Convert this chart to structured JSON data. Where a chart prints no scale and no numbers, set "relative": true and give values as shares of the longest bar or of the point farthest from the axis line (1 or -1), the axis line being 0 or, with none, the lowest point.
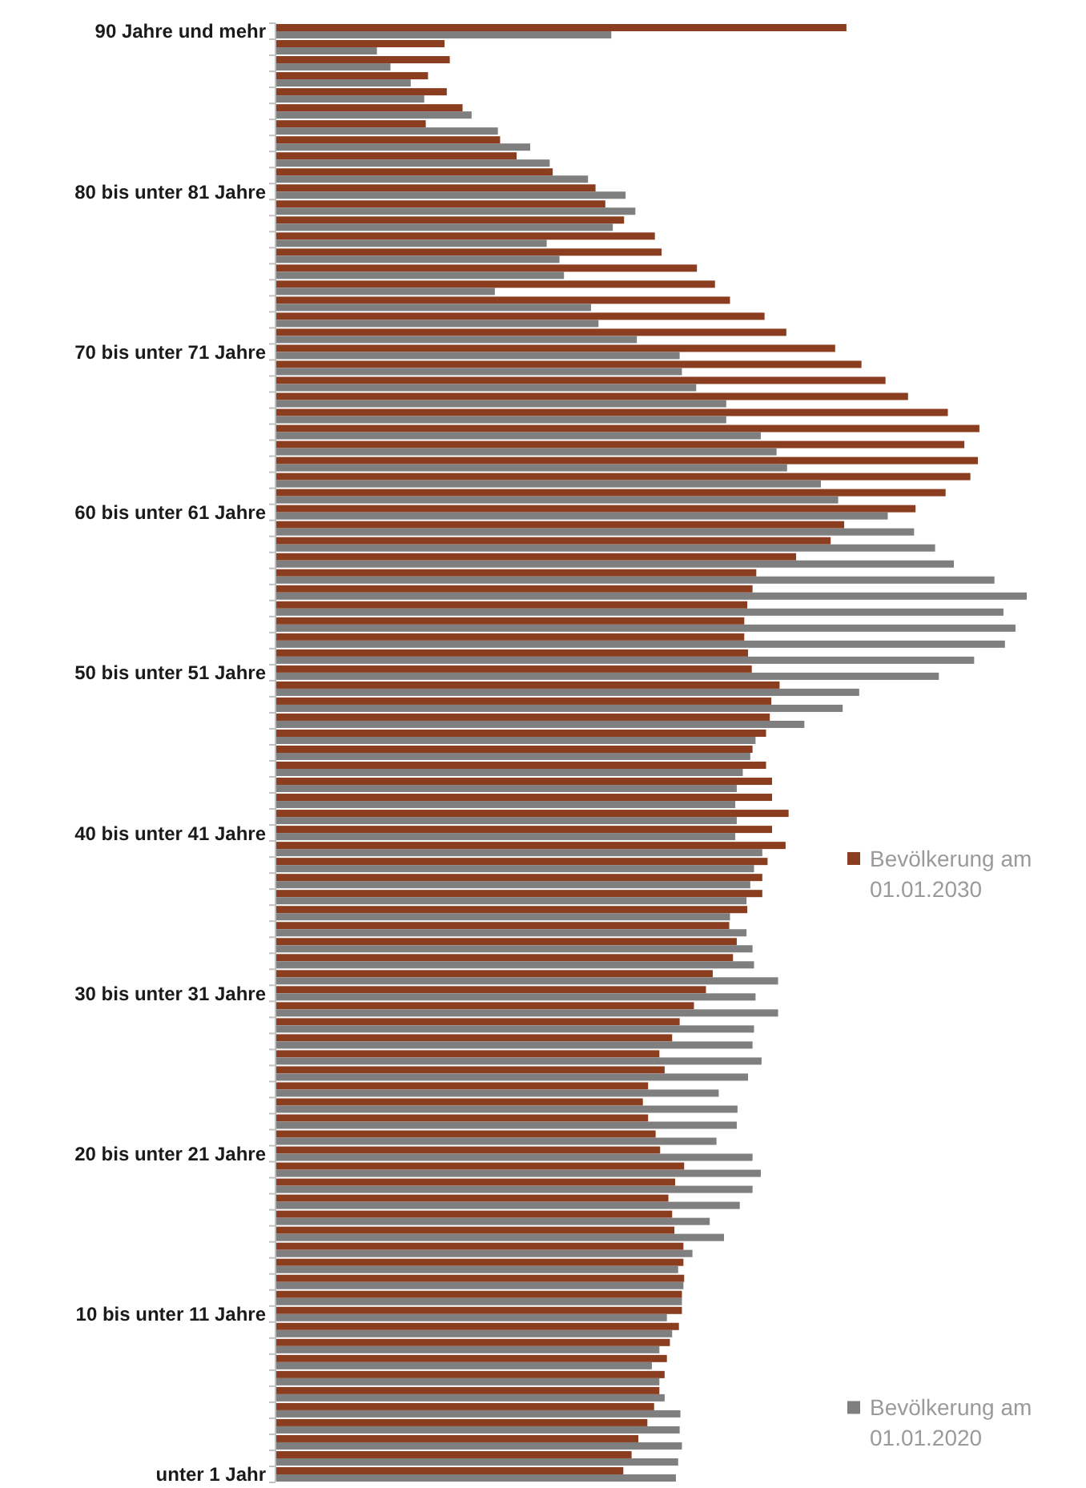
{
  "chart_data": {
    "type": "bar",
    "orientation": "horizontal",
    "relative": true,
    "legend": "right",
    "categories": [
      "90 Jahre und mehr",
      null,
      null,
      null,
      null,
      null,
      null,
      null,
      null,
      null,
      "80 bis unter 81 Jahre",
      null,
      null,
      null,
      null,
      null,
      null,
      null,
      null,
      null,
      "70 bis unter 71 Jahre",
      null,
      null,
      null,
      null,
      null,
      null,
      null,
      null,
      null,
      "60 bis unter 61 Jahre",
      null,
      null,
      null,
      null,
      null,
      null,
      null,
      null,
      null,
      "50 bis unter 51 Jahre",
      null,
      null,
      null,
      null,
      null,
      null,
      null,
      null,
      null,
      "40 bis unter 41 Jahre",
      null,
      null,
      null,
      null,
      null,
      null,
      null,
      null,
      null,
      "30 bis unter 31 Jahre",
      null,
      null,
      null,
      null,
      null,
      null,
      null,
      null,
      null,
      "20 bis unter 21 Jahre",
      null,
      null,
      null,
      null,
      null,
      null,
      null,
      null,
      null,
      "10 bis unter 11 Jahre",
      null,
      null,
      null,
      null,
      null,
      null,
      null,
      null,
      null,
      "unter 1 Jahr"
    ],
    "series": [
      {
        "name": "Bevölkerung am 01.01.2030",
        "color": "#8b3d1f",
        "values": [
          0.76,
          0.225,
          0.232,
          0.203,
          0.228,
          0.249,
          0.2,
          0.299,
          0.321,
          0.369,
          0.426,
          0.439,
          0.464,
          0.505,
          0.514,
          0.561,
          0.585,
          0.605,
          0.651,
          0.68,
          0.745,
          0.78,
          0.812,
          0.842,
          0.895,
          0.937,
          0.917,
          0.935,
          0.925,
          0.892,
          0.852,
          0.757,
          0.739,
          0.693,
          0.64,
          0.635,
          0.628,
          0.624,
          0.624,
          0.629,
          0.634,
          0.671,
          0.66,
          0.658,
          0.653,
          0.635,
          0.653,
          0.661,
          0.661,
          0.683,
          0.661,
          0.679,
          0.655,
          0.648,
          0.648,
          0.628,
          0.604,
          0.614,
          0.609,
          0.582,
          0.573,
          0.557,
          0.538,
          0.528,
          0.511,
          0.518,
          0.496,
          0.489,
          0.496,
          0.506,
          0.512,
          0.544,
          0.532,
          0.523,
          0.528,
          0.531,
          0.543,
          0.543,
          0.544,
          0.541,
          0.541,
          0.537,
          0.525,
          0.521,
          0.518,
          0.511,
          0.504,
          0.495,
          0.483,
          0.474,
          0.463
        ]
      },
      {
        "name": "Bevölkerung am 01.01.2020",
        "color": "#7f7f7f",
        "values": [
          0.447,
          0.135,
          0.153,
          0.18,
          0.198,
          0.261,
          0.296,
          0.339,
          0.365,
          0.416,
          0.466,
          0.479,
          0.449,
          0.361,
          0.378,
          0.384,
          0.292,
          0.42,
          0.43,
          0.481,
          0.538,
          0.541,
          0.56,
          0.6,
          0.6,
          0.646,
          0.667,
          0.681,
          0.726,
          0.749,
          0.815,
          0.85,
          0.878,
          0.903,
          0.957,
          1,
          0.969,
          0.985,
          0.971,
          0.93,
          0.883,
          0.777,
          0.755,
          0.704,
          0.639,
          0.632,
          0.622,
          0.614,
          0.612,
          0.614,
          0.612,
          0.648,
          0.637,
          0.632,
          0.627,
          0.605,
          0.627,
          0.635,
          0.637,
          0.669,
          0.639,
          0.669,
          0.637,
          0.635,
          0.647,
          0.629,
          0.59,
          0.615,
          0.614,
          0.587,
          0.635,
          0.646,
          0.635,
          0.618,
          0.578,
          0.597,
          0.555,
          0.536,
          0.543,
          0.541,
          0.521,
          0.528,
          0.511,
          0.501,
          0.511,
          0.518,
          0.539,
          0.538,
          0.541,
          0.536,
          0.533
        ]
      }
    ]
  }
}
